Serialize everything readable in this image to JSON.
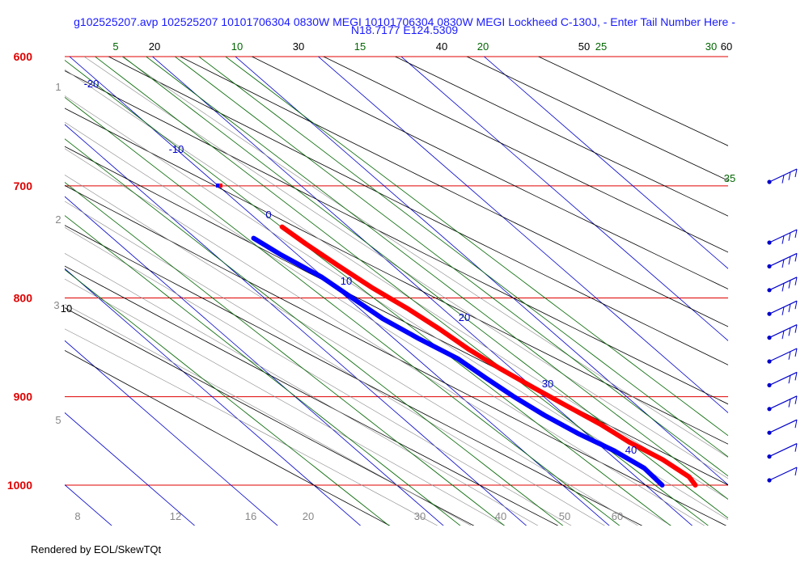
{
  "window": {
    "title": "g102525207.avp 102525207 10101706304 0830W MEGI 10101706304 0830W MEGI Lockheed C-130J, - Enter Tail Number Here -",
    "subtitle": "N18.7177 E124.5309",
    "footer": "Rendered by EOL/SkewTQt"
  },
  "colors": {
    "isobar": "#e00000",
    "isotherm": "#0000cc",
    "dry_adiabat": "#000000",
    "moist_adiabat": "#888888",
    "mixing_ratio": "#006600",
    "temperature": "#ff0000",
    "dewpoint": "#0000ff",
    "wind": "#0000cc"
  },
  "chart_data": {
    "type": "skew-t",
    "pressure_labels": [
      "600",
      "700",
      "800",
      "900",
      "1000"
    ],
    "isotherm_labels": [
      "-20",
      "-10",
      "0",
      "10",
      "20",
      "30",
      "40"
    ],
    "dry_adiabat_labels": [
      "20",
      "30",
      "40",
      "50",
      "60"
    ],
    "mixing_ratio_labels": [
      "5",
      "10",
      "15",
      "20",
      "25",
      "30",
      "35"
    ],
    "left_dry_adiabat_label": "10",
    "height_labels": [
      "1",
      "2",
      "3",
      "5"
    ],
    "bottom_labels": [
      "8",
      "12",
      "16",
      "20",
      "30",
      "40",
      "50",
      "60"
    ],
    "temperature_profile": [
      {
        "p": 1000,
        "t": 26.0
      },
      {
        "p": 990,
        "t": 26.4
      },
      {
        "p": 970,
        "t": 25.6
      },
      {
        "p": 950,
        "t": 24.0
      },
      {
        "p": 930,
        "t": 23.0
      },
      {
        "p": 910,
        "t": 21.5
      },
      {
        "p": 890,
        "t": 20.0
      },
      {
        "p": 870,
        "t": 18.6
      },
      {
        "p": 850,
        "t": 17.5
      },
      {
        "p": 830,
        "t": 16.8
      },
      {
        "p": 810,
        "t": 15.8
      },
      {
        "p": 790,
        "t": 14.4
      },
      {
        "p": 770,
        "t": 13.4
      },
      {
        "p": 750,
        "t": 12.5
      },
      {
        "p": 735,
        "t": 12.0
      }
    ],
    "dewpoint_profile": [
      {
        "p": 1000,
        "t": 22.0
      },
      {
        "p": 980,
        "t": 22.2
      },
      {
        "p": 960,
        "t": 21.0
      },
      {
        "p": 940,
        "t": 19.0
      },
      {
        "p": 920,
        "t": 17.5
      },
      {
        "p": 900,
        "t": 16.4
      },
      {
        "p": 880,
        "t": 15.6
      },
      {
        "p": 860,
        "t": 14.9
      },
      {
        "p": 840,
        "t": 13.0
      },
      {
        "p": 820,
        "t": 11.4
      },
      {
        "p": 800,
        "t": 10.6
      },
      {
        "p": 780,
        "t": 9.8
      },
      {
        "p": 760,
        "t": 8.0
      },
      {
        "p": 745,
        "t": 7.0
      }
    ],
    "point_marker": {
      "p": 700,
      "t": 10.0
    },
    "wind_barb_count": 12,
    "pressure_range": [
      1000,
      600
    ],
    "grid": true
  }
}
